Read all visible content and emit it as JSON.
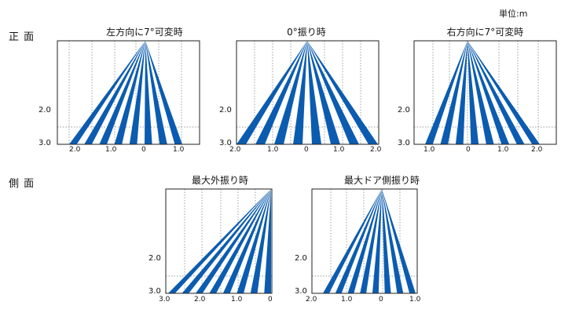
{
  "unit_label": "単位:m",
  "rows": {
    "front": "正 面",
    "side": "側 面"
  },
  "colors": {
    "beam": "#0b5cb0",
    "frame": "#222222",
    "grid": "#777777"
  },
  "panels": [
    {
      "id": "front-left7",
      "title": "左方向に7°可変時",
      "y_ticks": [
        "2.0",
        "3.0"
      ],
      "x_ticks": [
        "2.0",
        "1.0",
        "0",
        "1.0"
      ]
    },
    {
      "id": "front-0",
      "title": "0°振り時",
      "y_ticks": [
        "2.0",
        "3.0"
      ],
      "x_ticks": [
        "2.0",
        "1.0",
        "0",
        "1.0",
        "2.0"
      ]
    },
    {
      "id": "front-right7",
      "title": "右方向に7°可変時",
      "y_ticks": [
        "2.0",
        "3.0"
      ],
      "x_ticks": [
        "1.0",
        "0",
        "1.0",
        "2.0"
      ]
    },
    {
      "id": "side-outer",
      "title": "最大外振り時",
      "y_ticks": [
        "2.0",
        "3.0"
      ],
      "x_ticks": [
        "3.0",
        "2.0",
        "1.0",
        "0"
      ]
    },
    {
      "id": "side-door",
      "title": "最大ドア側振り時",
      "y_ticks": [
        "2.0",
        "3.0"
      ],
      "x_ticks": [
        "2.0",
        "1.0",
        "0",
        "1.0"
      ]
    }
  ]
}
